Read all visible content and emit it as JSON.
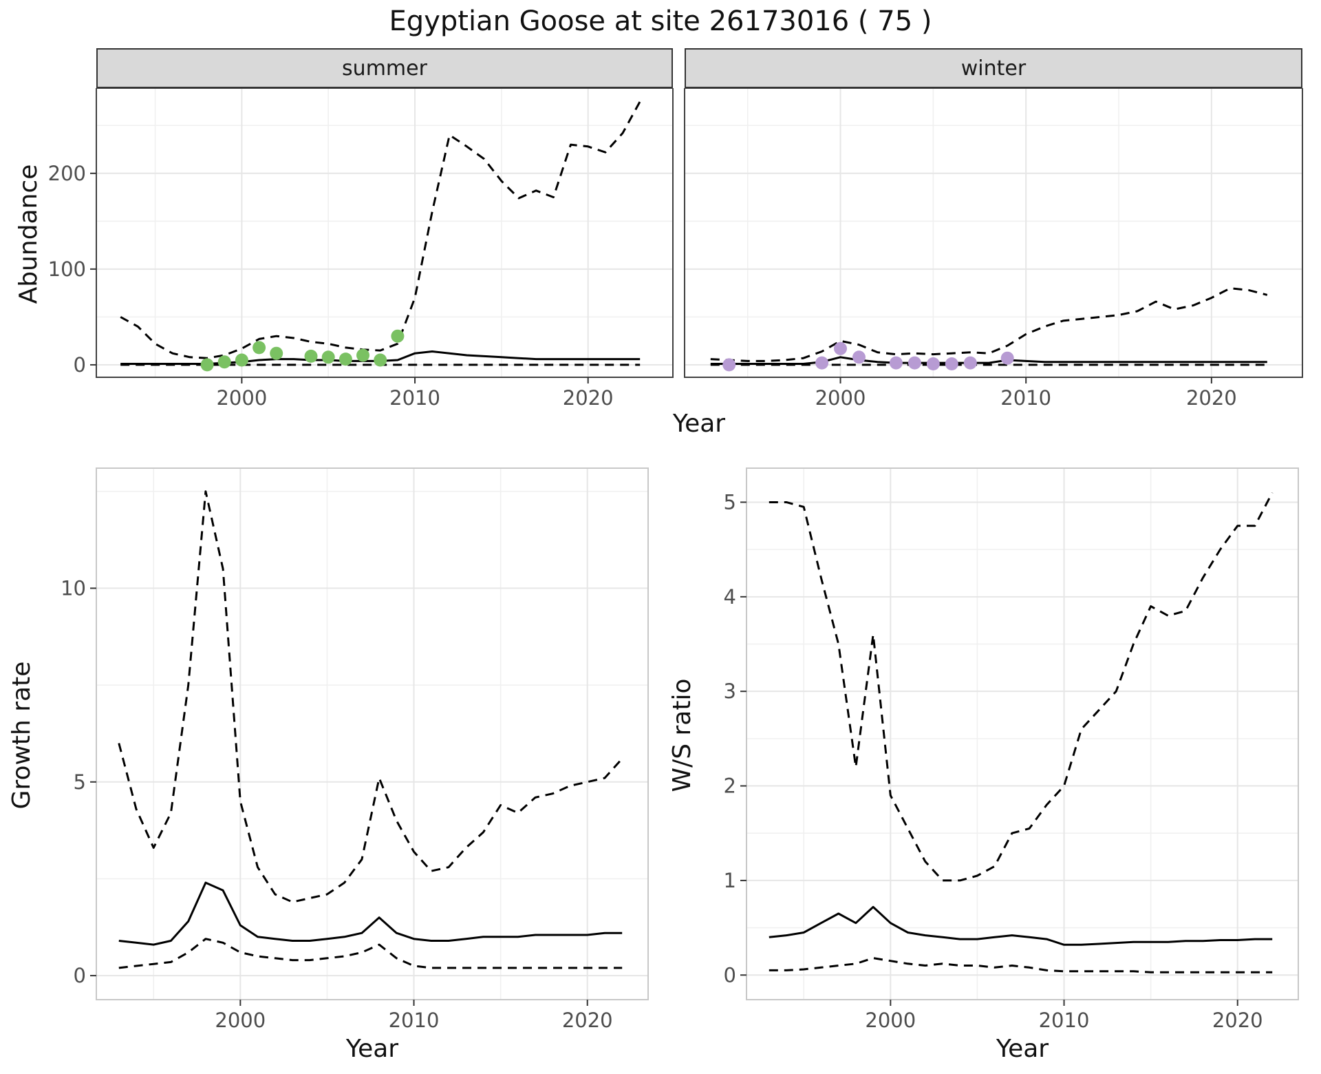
{
  "title": "Egyptian Goose at site 26173016 ( 75 )",
  "colors": {
    "summer_points": "#7ac162",
    "winter_points": "#b79bd3",
    "line": "#000000",
    "strip_background": "#d9d9d9",
    "grid_major": "#e6e6e6",
    "grid_minor": "#f0f0f0"
  },
  "chart_data": [
    {
      "id": "abundance_summer",
      "type": "line",
      "facet": "summer",
      "xlabel": "Year",
      "ylabel": "Abundance",
      "xlim": [
        1991.6,
        2024.9
      ],
      "ylim": [
        -13,
        289
      ],
      "xticks": [
        2000,
        2010,
        2020
      ],
      "xticks_minor": [
        1995,
        2005,
        2015
      ],
      "yticks": [
        0,
        100,
        200
      ],
      "yticks_minor": [
        50,
        150,
        250
      ],
      "series": [
        {
          "name": "upper_ci",
          "style": "dashed",
          "x": [
            1993,
            1994,
            1995,
            1996,
            1997,
            1998,
            1999,
            2000,
            2001,
            2002,
            2003,
            2004,
            2005,
            2006,
            2007,
            2008,
            2009,
            2010,
            2011,
            2012,
            2013,
            2014,
            2015,
            2016,
            2017,
            2018,
            2019,
            2020,
            2021,
            2022,
            2023
          ],
          "y": [
            50,
            40,
            22,
            12,
            8,
            7,
            10,
            17,
            27,
            30,
            28,
            24,
            22,
            18,
            16,
            15,
            22,
            70,
            160,
            240,
            228,
            215,
            192,
            174,
            182,
            175,
            230,
            228,
            222,
            242,
            275
          ]
        },
        {
          "name": "median",
          "style": "solid",
          "x": [
            1993,
            1994,
            1995,
            1996,
            1997,
            1998,
            1999,
            2000,
            2001,
            2002,
            2003,
            2004,
            2005,
            2006,
            2007,
            2008,
            2009,
            2010,
            2011,
            2012,
            2013,
            2014,
            2015,
            2016,
            2017,
            2018,
            2019,
            2020,
            2021,
            2022,
            2023
          ],
          "y": [
            1,
            1,
            1,
            1,
            1,
            1,
            2,
            3,
            5,
            6,
            6,
            5,
            5,
            4,
            4,
            4,
            5,
            12,
            14,
            12,
            10,
            9,
            8,
            7,
            6,
            6,
            6,
            6,
            6,
            6,
            6
          ]
        },
        {
          "name": "lower_ci",
          "style": "dashed",
          "x": [
            1993,
            1994,
            1995,
            1996,
            1997,
            1998,
            1999,
            2000,
            2001,
            2002,
            2003,
            2004,
            2005,
            2006,
            2007,
            2008,
            2009,
            2010,
            2011,
            2012,
            2013,
            2014,
            2015,
            2016,
            2017,
            2018,
            2019,
            2020,
            2021,
            2022,
            2023
          ],
          "y": [
            0,
            0,
            0,
            0,
            0,
            0,
            0,
            0,
            0,
            0,
            0,
            0,
            0,
            0,
            0,
            0,
            0,
            0,
            0,
            0,
            0,
            0,
            0,
            0,
            0,
            0,
            0,
            0,
            0,
            0,
            0
          ]
        }
      ],
      "points": {
        "name": "observed_counts",
        "color": "#7ac162",
        "x": [
          1998,
          1999,
          2000,
          2001,
          2002,
          2004,
          2005,
          2006,
          2007,
          2008,
          2009
        ],
        "y": [
          0,
          3,
          5,
          18,
          12,
          9,
          8,
          6,
          10,
          5,
          30
        ]
      }
    },
    {
      "id": "abundance_winter",
      "type": "line",
      "facet": "winter",
      "xlabel": "Year",
      "ylabel": "Abundance",
      "xlim": [
        1991.6,
        2024.9
      ],
      "ylim": [
        -13,
        289
      ],
      "xticks": [
        2000,
        2010,
        2020
      ],
      "xticks_minor": [
        1995,
        2005,
        2015
      ],
      "yticks": [
        0,
        100,
        200
      ],
      "yticks_minor": [
        50,
        150,
        250
      ],
      "series": [
        {
          "name": "upper_ci",
          "style": "dashed",
          "x": [
            1993,
            1994,
            1995,
            1996,
            1997,
            1998,
            1999,
            2000,
            2001,
            2002,
            2003,
            2004,
            2005,
            2006,
            2007,
            2008,
            2009,
            2010,
            2011,
            2012,
            2013,
            2014,
            2015,
            2016,
            2017,
            2018,
            2019,
            2020,
            2021,
            2022,
            2023
          ],
          "y": [
            6,
            5,
            4,
            4,
            5,
            7,
            14,
            25,
            21,
            13,
            11,
            12,
            11,
            12,
            13,
            12,
            20,
            32,
            40,
            46,
            48,
            50,
            52,
            56,
            66,
            58,
            62,
            70,
            80,
            78,
            73
          ]
        },
        {
          "name": "median",
          "style": "solid",
          "x": [
            1993,
            1994,
            1995,
            1996,
            1997,
            1998,
            1999,
            2000,
            2001,
            2002,
            2003,
            2004,
            2005,
            2006,
            2007,
            2008,
            2009,
            2010,
            2011,
            2012,
            2013,
            2014,
            2015,
            2016,
            2017,
            2018,
            2019,
            2020,
            2021,
            2022,
            2023
          ],
          "y": [
            1,
            1,
            1,
            1,
            1,
            1,
            3,
            8,
            5,
            3,
            2,
            2,
            2,
            2,
            2,
            2,
            5,
            4,
            3,
            3,
            3,
            3,
            3,
            3,
            3,
            3,
            3,
            3,
            3,
            3,
            3
          ]
        },
        {
          "name": "lower_ci",
          "style": "dashed",
          "x": [
            1993,
            1994,
            1995,
            1996,
            1997,
            1998,
            1999,
            2000,
            2001,
            2002,
            2003,
            2004,
            2005,
            2006,
            2007,
            2008,
            2009,
            2010,
            2011,
            2012,
            2013,
            2014,
            2015,
            2016,
            2017,
            2018,
            2019,
            2020,
            2021,
            2022,
            2023
          ],
          "y": [
            0,
            0,
            0,
            0,
            0,
            0,
            0,
            0,
            0,
            0,
            0,
            0,
            0,
            0,
            0,
            0,
            0,
            0,
            0,
            0,
            0,
            0,
            0,
            0,
            0,
            0,
            0,
            0,
            0,
            0,
            0
          ]
        }
      ],
      "points": {
        "name": "observed_counts",
        "color": "#b79bd3",
        "x": [
          1994,
          1999,
          2000,
          2001,
          2003,
          2004,
          2005,
          2006,
          2007,
          2009
        ],
        "y": [
          0,
          2,
          17,
          8,
          2,
          2,
          1,
          1,
          2,
          7
        ]
      }
    },
    {
      "id": "growth_rate",
      "type": "line",
      "xlabel": "Year",
      "ylabel": "Growth rate",
      "xlim": [
        1991.7,
        2023.5
      ],
      "ylim": [
        -0.62,
        13.1
      ],
      "xticks": [
        2000,
        2010,
        2020
      ],
      "xticks_minor": [
        1995,
        2005,
        2015
      ],
      "yticks": [
        0,
        5,
        10
      ],
      "yticks_minor": [
        2.5,
        7.5,
        12.5
      ],
      "series": [
        {
          "name": "upper_ci",
          "style": "dashed",
          "x": [
            1993,
            1994,
            1995,
            1996,
            1997,
            1998,
            1999,
            2000,
            2001,
            2002,
            2003,
            2004,
            2005,
            2006,
            2007,
            2008,
            2009,
            2010,
            2011,
            2012,
            2013,
            2014,
            2015,
            2016,
            2017,
            2018,
            2019,
            2020,
            2021,
            2022
          ],
          "y": [
            6.0,
            4.3,
            3.3,
            4.2,
            7.5,
            12.5,
            10.5,
            4.5,
            2.8,
            2.1,
            1.9,
            2.0,
            2.1,
            2.4,
            3.0,
            5.1,
            4.0,
            3.2,
            2.7,
            2.8,
            3.3,
            3.7,
            4.4,
            4.2,
            4.6,
            4.7,
            4.9,
            5.0,
            5.1,
            5.6
          ]
        },
        {
          "name": "median",
          "style": "solid",
          "x": [
            1993,
            1994,
            1995,
            1996,
            1997,
            1998,
            1999,
            2000,
            2001,
            2002,
            2003,
            2004,
            2005,
            2006,
            2007,
            2008,
            2009,
            2010,
            2011,
            2012,
            2013,
            2014,
            2015,
            2016,
            2017,
            2018,
            2019,
            2020,
            2021,
            2022
          ],
          "y": [
            0.9,
            0.85,
            0.8,
            0.9,
            1.4,
            2.4,
            2.2,
            1.3,
            1.0,
            0.95,
            0.9,
            0.9,
            0.95,
            1.0,
            1.1,
            1.5,
            1.1,
            0.95,
            0.9,
            0.9,
            0.95,
            1.0,
            1.0,
            1.0,
            1.05,
            1.05,
            1.05,
            1.05,
            1.1,
            1.1
          ]
        },
        {
          "name": "lower_ci",
          "style": "dashed",
          "x": [
            1993,
            1994,
            1995,
            1996,
            1997,
            1998,
            1999,
            2000,
            2001,
            2002,
            2003,
            2004,
            2005,
            2006,
            2007,
            2008,
            2009,
            2010,
            2011,
            2012,
            2013,
            2014,
            2015,
            2016,
            2017,
            2018,
            2019,
            2020,
            2021,
            2022
          ],
          "y": [
            0.2,
            0.25,
            0.3,
            0.35,
            0.6,
            0.95,
            0.85,
            0.6,
            0.5,
            0.45,
            0.4,
            0.4,
            0.45,
            0.5,
            0.6,
            0.8,
            0.45,
            0.25,
            0.2,
            0.2,
            0.2,
            0.2,
            0.2,
            0.2,
            0.2,
            0.2,
            0.2,
            0.2,
            0.2,
            0.2
          ]
        }
      ]
    },
    {
      "id": "ws_ratio",
      "type": "line",
      "xlabel": "Year",
      "ylabel": "W/S ratio",
      "xlim": [
        1991.7,
        2023.5
      ],
      "ylim": [
        -0.26,
        5.36
      ],
      "xticks": [
        2000,
        2010,
        2020
      ],
      "xticks_minor": [
        1995,
        2005,
        2015
      ],
      "yticks": [
        0,
        1,
        2,
        3,
        4,
        5
      ],
      "yticks_minor": [
        0.5,
        1.5,
        2.5,
        3.5,
        4.5
      ],
      "series": [
        {
          "name": "upper_ci",
          "style": "dashed",
          "x": [
            1993,
            1994,
            1995,
            1996,
            1997,
            1998,
            1999,
            2000,
            2001,
            2002,
            2003,
            2004,
            2005,
            2006,
            2007,
            2008,
            2009,
            2010,
            2011,
            2012,
            2013,
            2014,
            2015,
            2016,
            2017,
            2018,
            2019,
            2020,
            2021,
            2022
          ],
          "y": [
            5.0,
            5.0,
            4.95,
            4.2,
            3.5,
            2.2,
            3.6,
            1.9,
            1.55,
            1.2,
            1.0,
            1.0,
            1.05,
            1.15,
            1.5,
            1.55,
            1.8,
            2.0,
            2.6,
            2.8,
            3.0,
            3.5,
            3.9,
            3.8,
            3.85,
            4.2,
            4.5,
            4.75,
            4.75,
            5.1
          ]
        },
        {
          "name": "median",
          "style": "solid",
          "x": [
            1993,
            1994,
            1995,
            1996,
            1997,
            1998,
            1999,
            2000,
            2001,
            2002,
            2003,
            2004,
            2005,
            2006,
            2007,
            2008,
            2009,
            2010,
            2011,
            2012,
            2013,
            2014,
            2015,
            2016,
            2017,
            2018,
            2019,
            2020,
            2021,
            2022
          ],
          "y": [
            0.4,
            0.42,
            0.45,
            0.55,
            0.65,
            0.55,
            0.72,
            0.55,
            0.45,
            0.42,
            0.4,
            0.38,
            0.38,
            0.4,
            0.42,
            0.4,
            0.38,
            0.32,
            0.32,
            0.33,
            0.34,
            0.35,
            0.35,
            0.35,
            0.36,
            0.36,
            0.37,
            0.37,
            0.38,
            0.38
          ]
        },
        {
          "name": "lower_ci",
          "style": "dashed",
          "x": [
            1993,
            1994,
            1995,
            1996,
            1997,
            1998,
            1999,
            2000,
            2001,
            2002,
            2003,
            2004,
            2005,
            2006,
            2007,
            2008,
            2009,
            2010,
            2011,
            2012,
            2013,
            2014,
            2015,
            2016,
            2017,
            2018,
            2019,
            2020,
            2021,
            2022
          ],
          "y": [
            0.05,
            0.05,
            0.06,
            0.08,
            0.1,
            0.12,
            0.18,
            0.15,
            0.12,
            0.1,
            0.12,
            0.1,
            0.1,
            0.08,
            0.1,
            0.08,
            0.05,
            0.04,
            0.04,
            0.04,
            0.04,
            0.04,
            0.03,
            0.03,
            0.03,
            0.03,
            0.03,
            0.03,
            0.03,
            0.03
          ]
        }
      ]
    }
  ]
}
